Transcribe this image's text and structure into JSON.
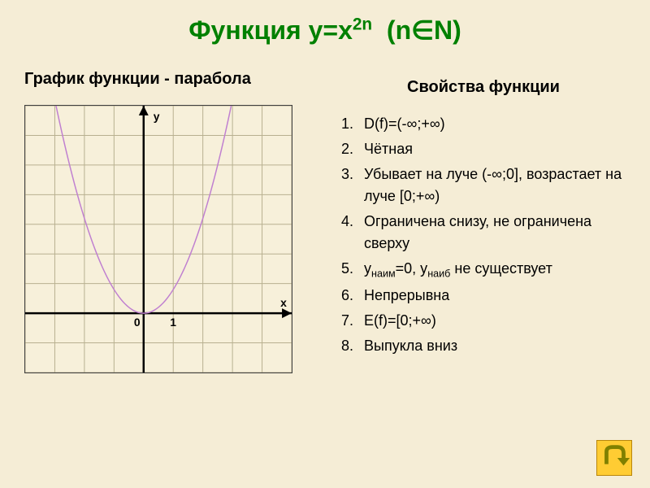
{
  "title_html": "Функция y=x<sup style='font-size:0.65em'>2n</sup>&nbsp;&nbsp;(n&isin;N)",
  "left": {
    "subtitle_prefix": "График функции - ",
    "subtitle_accent": "парабола"
  },
  "right": {
    "subtitle": "Свойства функции"
  },
  "properties": [
    "D(f)=(-∞;+∞)",
    "Чётная",
    "Убывает на луче (-∞;0], возрастает на луче [0;+∞)",
    "Ограничена снизу, не ограничена сверху",
    "y<sub>наим</sub>=0, y<sub>наиб</sub> не существует",
    "Непрерывна",
    "E(f)=[0;+∞)",
    "Выпукла вниз"
  ],
  "chart": {
    "type": "line",
    "background_color": "#f7f0da",
    "border_color": "#404040",
    "grid_color": "#b8b090",
    "axis_color": "#000000",
    "curve_color": "#c080d0",
    "curve_width": 1.5,
    "grid_cells_x": 9,
    "grid_cells_y": 9,
    "origin_cell_x": 4,
    "origin_cell_y": 7,
    "xlim": [
      -4,
      5
    ],
    "ylim": [
      -2,
      7
    ],
    "x_axis_label": "x",
    "y_axis_label": "y",
    "origin_label": "0",
    "unit_label": "1",
    "label_font_size": 14,
    "label_font_weight": "bold",
    "parabola_coef": 0.8,
    "parabola_x_range": [
      -3.1,
      3.1
    ]
  },
  "colors": {
    "page_bg": "#f5edd6",
    "title": "#008000",
    "text": "#000000",
    "nav_btn_bg": "#ffcc33",
    "nav_btn_border": "#b8860b",
    "nav_arrow": "#808000"
  }
}
